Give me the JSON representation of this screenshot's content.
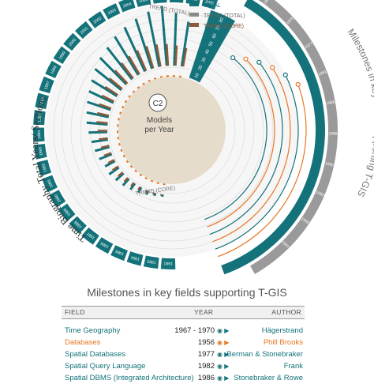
{
  "chart_data": {
    "type": "radial_bar",
    "center_label": {
      "badge": "C2",
      "line1": "Models",
      "line2": "per Year"
    },
    "left_title": "Time Biography Total Years/ Sections",
    "right_title": "Milestones in key fields supporting T-GIS",
    "legend": [
      {
        "label": "TOTAL",
        "color": "#13727a"
      },
      {
        "label": "TREND (TOTAL)",
        "color": "#8a8a8a"
      },
      {
        "label": "TREND (CORE)",
        "color": "#8a5a3a"
      }
    ],
    "ring_labels": {
      "trend_total": "TREND (TOTAL)",
      "trend_core": "TREND (CORE)"
    },
    "scale_ticks": [
      "10",
      "20",
      "30",
      "40",
      "50",
      "60",
      "70",
      "80"
    ],
    "outer_years": [
      "1982",
      "1983",
      "1984",
      "1985",
      "1986",
      "1987",
      "1988",
      "1989",
      "1990",
      "1991",
      "1992",
      "1993",
      "1994",
      "1995",
      "1996",
      "1997",
      "1998",
      "1999",
      "2000",
      "2001",
      "2002",
      "2003",
      "2004",
      "2005",
      "2006",
      "2007",
      "2008",
      "2009"
    ],
    "right_years": [
      "1967",
      "1970",
      "1977",
      "1982",
      "1986",
      "1988",
      "1990",
      "1993",
      "1995",
      "1997"
    ],
    "total_values": [
      3,
      4,
      6,
      8,
      10,
      12,
      14,
      16,
      15,
      18,
      20,
      22,
      25,
      28,
      30,
      33,
      36,
      40,
      45,
      50,
      54,
      60,
      65,
      70,
      75,
      80,
      70,
      60
    ],
    "core_values": [
      2,
      3,
      4,
      5,
      6,
      7,
      8,
      9,
      9,
      10,
      11,
      12,
      13,
      15,
      16,
      17,
      18,
      20,
      22,
      24,
      26,
      28,
      30,
      31,
      30,
      29,
      27,
      25
    ]
  },
  "table": {
    "title": "Milestones in key fields supporting T-GIS",
    "headers": {
      "field": "FIELD",
      "year": "YEAR",
      "author": "AUTHOR"
    },
    "rows": [
      {
        "field": "Time Geography",
        "year": "1967 - 1970",
        "author": "Hägerstrand",
        "color": "teal"
      },
      {
        "field": "Databases",
        "year": "1956",
        "author": "Phill Brooks",
        "color": "orange"
      },
      {
        "field": "Spatial Databases",
        "year": "1977",
        "author": "Berman & Stonebraker",
        "color": "teal"
      },
      {
        "field": "Spatial Query Language",
        "year": "1982",
        "author": "Frank",
        "color": "teal"
      },
      {
        "field": "Spatial DBMS (Integrated Architecture)",
        "year": "1986",
        "author": "Stonebraker & Rowe",
        "color": "teal"
      }
    ]
  }
}
